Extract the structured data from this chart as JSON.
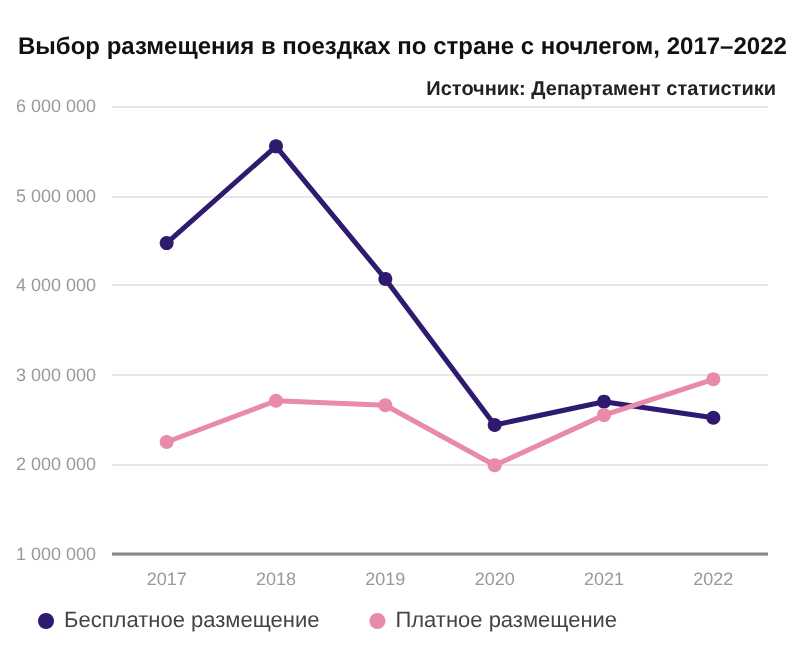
{
  "chart_data": {
    "type": "line",
    "title": "Выбор размещения в поездках по стране с ночлегом, 2017–2022",
    "annotations": [
      "Источник: Департамент статистики"
    ],
    "categories": [
      "2017",
      "2018",
      "2019",
      "2020",
      "2021",
      "2022"
    ],
    "series": [
      {
        "name": "Бесплатное размещение",
        "color": "#2e1a6e",
        "values": [
          4470000,
          5550000,
          4070000,
          2440000,
          2700000,
          2520000
        ]
      },
      {
        "name": "Платное размещение",
        "color": "#e88aa8",
        "values": [
          2250000,
          2710000,
          2660000,
          1990000,
          2550000,
          2950000
        ]
      }
    ],
    "ylim": [
      1000000,
      6000000
    ],
    "yticks": [
      {
        "value": 1000000,
        "label": "1 000 000"
      },
      {
        "value": 2000000,
        "label": "2 000 000"
      },
      {
        "value": 3000000,
        "label": "3 000 000"
      },
      {
        "value": 4000000,
        "label": "4 000 000"
      },
      {
        "value": 5000000,
        "label": "5 000 000"
      },
      {
        "value": 6000000,
        "label": "6 000 000"
      }
    ],
    "grid": "y",
    "legend": "bottom left",
    "marker": "circle",
    "line_style": "solid"
  }
}
